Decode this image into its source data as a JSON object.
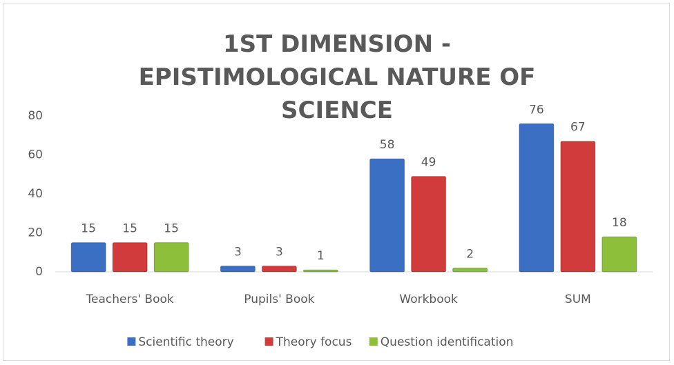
{
  "chart_data": {
    "type": "bar",
    "title": "1ST DIMENSION - EPISTIMOLOGICAL NATURE OF SCIENCE",
    "categories": [
      "Teachers' Book",
      "Pupils' Book",
      "Workbook",
      "SUM"
    ],
    "series": [
      {
        "name": "Scientific theory",
        "color": "#3a6fc4",
        "values": [
          15,
          3,
          58,
          76
        ]
      },
      {
        "name": "Theory focus",
        "color": "#d23b3b",
        "values": [
          15,
          3,
          49,
          67
        ]
      },
      {
        "name": "Question identification",
        "color": "#8dbf3b",
        "values": [
          15,
          1,
          2,
          18
        ]
      }
    ],
    "ylim": [
      0,
      80
    ],
    "yticks": [
      0,
      20,
      40,
      60,
      80
    ],
    "grid": false,
    "legend": "bottom"
  }
}
